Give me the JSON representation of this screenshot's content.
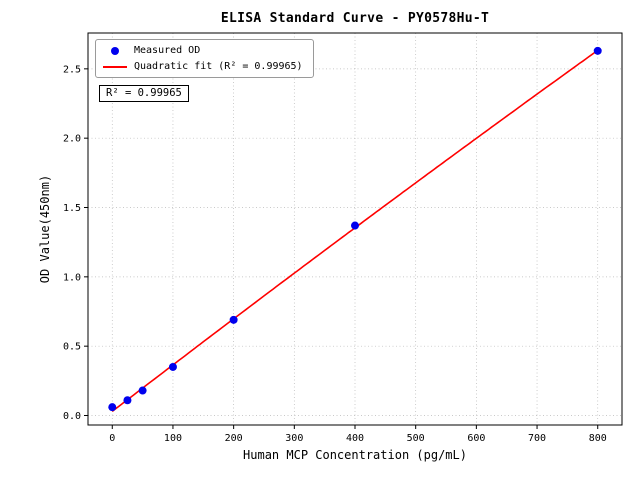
{
  "chart_data": {
    "type": "scatter",
    "title": "ELISA Standard Curve - PY0578Hu-T",
    "xlabel": "Human MCP Concentration (pg/mL)",
    "ylabel": "OD Value(450nm)",
    "series": [
      {
        "name": "Measured OD",
        "type": "scatter",
        "color": "#0000ee",
        "x": [
          0,
          25,
          50,
          100,
          200,
          400,
          800
        ],
        "y": [
          0.06,
          0.11,
          0.18,
          0.35,
          0.69,
          1.37,
          2.63
        ]
      },
      {
        "name": "Quadratic fit (R² = 0.99965)",
        "type": "line",
        "color": "#ff0000",
        "fit": {
          "kind": "quadratic",
          "a": -1.372e-07,
          "b": 0.0033643,
          "c": 0.0298,
          "r2": 0.99965,
          "x_range": [
            0,
            800
          ]
        }
      }
    ],
    "xlim": [
      -40,
      840
    ],
    "ylim": [
      -0.0685,
      2.7585
    ],
    "xticks": [
      0,
      100,
      200,
      300,
      400,
      500,
      600,
      700,
      800
    ],
    "xtick_labels": [
      "0",
      "100",
      "200",
      "300",
      "400",
      "500",
      "600",
      "700",
      "800"
    ],
    "yticks": [
      0,
      0.5,
      1,
      1.5,
      2,
      2.5
    ],
    "ytick_labels": [
      "0.0",
      "0.5",
      "1.0",
      "1.5",
      "2.0",
      "2.5"
    ],
    "grid": true,
    "legend_position": "upper-left",
    "annotation": "R² = 0.99965"
  }
}
